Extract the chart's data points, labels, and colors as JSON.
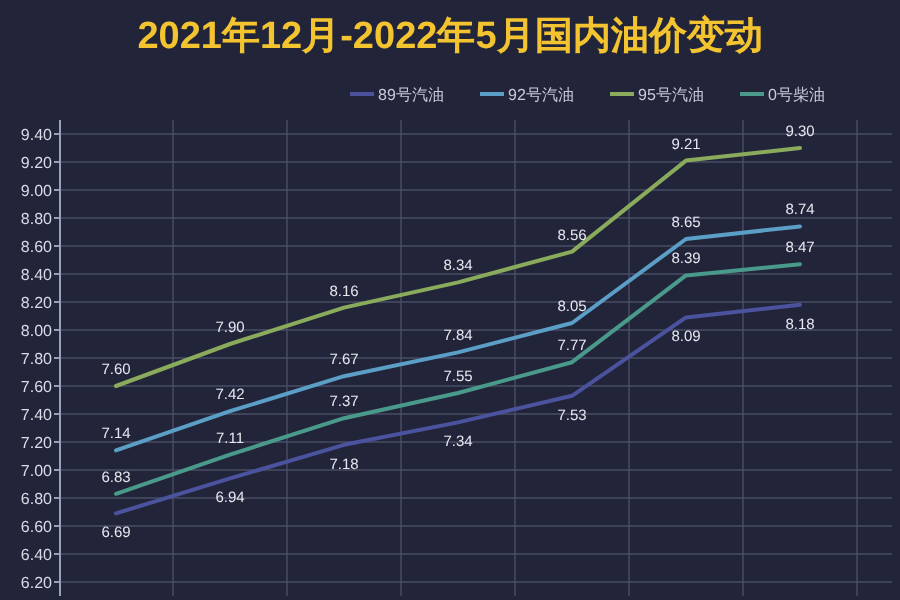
{
  "chart_data": {
    "type": "line",
    "title": "2021年12月-2022年5月国内油价变动",
    "categories": [
      null,
      null,
      null,
      null,
      null,
      null,
      null
    ],
    "series": [
      {
        "name": "89号汽油",
        "color": "#4b529e",
        "values": [
          6.69,
          6.94,
          7.18,
          7.34,
          7.53,
          8.09,
          8.18
        ],
        "value_labels": [
          "6.69",
          "6.94",
          "7.18",
          "7.34",
          "7.53",
          "8.09",
          "8.18"
        ]
      },
      {
        "name": "92号汽油",
        "color": "#5b9ec6",
        "values": [
          7.14,
          7.42,
          7.67,
          7.84,
          8.05,
          8.65,
          8.74
        ],
        "value_labels": [
          "7.14",
          "7.42",
          "7.67",
          "7.84",
          "8.05",
          "8.65",
          "8.74"
        ]
      },
      {
        "name": "95号汽油",
        "color": "#8aab5c",
        "values": [
          7.6,
          7.9,
          8.16,
          8.34,
          8.56,
          9.21,
          9.3
        ],
        "value_labels": [
          "7.60",
          "7.90",
          "8.16",
          "8.34",
          "8.56",
          "9.21",
          "9.30"
        ]
      },
      {
        "name": "0号柴油",
        "color": "#4a9a8c",
        "values": [
          6.83,
          7.11,
          7.37,
          7.55,
          7.77,
          8.39,
          8.47
        ],
        "value_labels": [
          "6.83",
          "7.11",
          "7.37",
          "7.55",
          "7.77",
          "8.39",
          "8.47"
        ]
      }
    ],
    "ylim": [
      6.1,
      9.5
    ],
    "yticks": [
      {
        "value": 6.2,
        "label": "6.20"
      },
      {
        "value": 6.4,
        "label": "6.40"
      },
      {
        "value": 6.6,
        "label": "6.60"
      },
      {
        "value": 6.8,
        "label": "6.80"
      },
      {
        "value": 7.0,
        "label": "7.00"
      },
      {
        "value": 7.2,
        "label": "7.20"
      },
      {
        "value": 7.4,
        "label": "7.40"
      },
      {
        "value": 7.6,
        "label": "7.60"
      },
      {
        "value": 7.8,
        "label": "7.80"
      },
      {
        "value": 8.0,
        "label": "8.00"
      },
      {
        "value": 8.2,
        "label": "8.20"
      },
      {
        "value": 8.4,
        "label": "8.40"
      },
      {
        "value": 8.6,
        "label": "8.60"
      },
      {
        "value": 8.8,
        "label": "8.80"
      },
      {
        "value": 9.0,
        "label": "9.00"
      },
      {
        "value": 9.2,
        "label": "9.20"
      },
      {
        "value": 9.4,
        "label": "9.40"
      }
    ],
    "grid": true,
    "legend": "top",
    "marker": "none",
    "line_style": "solid"
  }
}
